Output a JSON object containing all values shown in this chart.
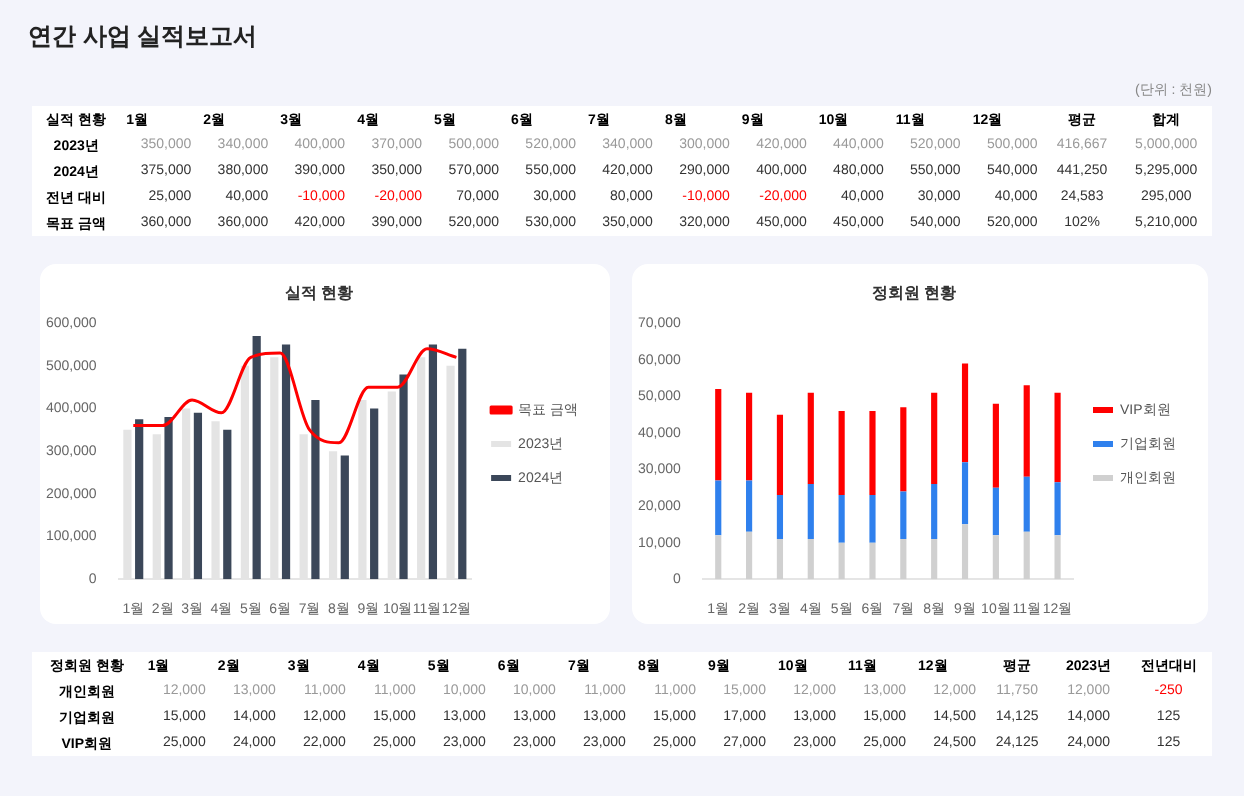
{
  "chart_data": [
    {
      "type": "heatmap",
      "title": "연간 사업 실적보고서",
      "ylabel": "실적 현황",
      "annotations": [
        "(단위 : 천원)"
      ],
      "categories": [
        "1월",
        "2월",
        "3월",
        "4월",
        "5월",
        "6월",
        "7월",
        "8월",
        "9월",
        "10월",
        "11월",
        "12월",
        "평균",
        "합계"
      ],
      "y_categories": [
        "2023년",
        "2024년",
        "전년 대비",
        "목표 금액"
      ],
      "cells": [
        [
          350000,
          340000,
          400000,
          370000,
          500000,
          520000,
          340000,
          300000,
          420000,
          440000,
          520000,
          500000,
          416667,
          5000000
        ],
        [
          375000,
          380000,
          390000,
          350000,
          570000,
          550000,
          420000,
          290000,
          400000,
          480000,
          550000,
          540000,
          441250,
          5295000
        ],
        [
          25000,
          40000,
          -10000,
          -20000,
          70000,
          30000,
          80000,
          -10000,
          -20000,
          40000,
          30000,
          40000,
          24583,
          295000
        ],
        [
          360000,
          360000,
          420000,
          390000,
          520000,
          530000,
          350000,
          320000,
          450000,
          450000,
          540000,
          520000,
          102,
          5210000
        ]
      ],
      "cell_labels": [
        [
          "350,000",
          "340,000",
          "400,000",
          "370,000",
          "500,000",
          "520,000",
          "340,000",
          "300,000",
          "420,000",
          "440,000",
          "520,000",
          "500,000",
          "416,667",
          "5,000,000"
        ],
        [
          "375,000",
          "380,000",
          "390,000",
          "350,000",
          "570,000",
          "550,000",
          "420,000",
          "290,000",
          "400,000",
          "480,000",
          "550,000",
          "540,000",
          "441,250",
          "5,295,000"
        ],
        [
          "25,000",
          "40,000",
          "-10,000",
          "-20,000",
          "70,000",
          "30,000",
          "80,000",
          "-10,000",
          "-20,000",
          "40,000",
          "30,000",
          "40,000",
          "24,583",
          "295,000"
        ],
        [
          "360,000",
          "360,000",
          "420,000",
          "390,000",
          "520,000",
          "530,000",
          "350,000",
          "320,000",
          "450,000",
          "450,000",
          "540,000",
          "520,000",
          "102%",
          "5,210,000"
        ]
      ]
    },
    {
      "type": "bar",
      "title": "실적 현황",
      "legend": "right",
      "categories": [
        "1월",
        "2월",
        "3월",
        "4월",
        "5월",
        "6월",
        "7월",
        "8월",
        "9월",
        "10월",
        "11월",
        "12월"
      ],
      "ylim": [
        0,
        600000
      ],
      "yticks": [
        0,
        {
          "value": 100000,
          "label": "100,000"
        },
        {
          "value": 200000,
          "label": "200,000"
        },
        {
          "value": 300000,
          "label": "300,000"
        },
        {
          "value": 400000,
          "label": "400,000"
        },
        {
          "value": 500000,
          "label": "500,000"
        },
        {
          "value": 600000,
          "label": "600,000"
        }
      ],
      "series": [
        {
          "name": "2023년",
          "color": "#e4e4e4",
          "values": [
            350000,
            340000,
            400000,
            370000,
            500000,
            520000,
            340000,
            300000,
            420000,
            440000,
            520000,
            500000
          ]
        },
        {
          "name": "2024년",
          "color": "#3b4759",
          "values": [
            375000,
            380000,
            390000,
            350000,
            570000,
            550000,
            420000,
            290000,
            400000,
            480000,
            550000,
            540000
          ]
        },
        {
          "name": "목표 금액",
          "type": "line",
          "color": "#ff0000",
          "values": [
            360000,
            360000,
            420000,
            390000,
            520000,
            530000,
            350000,
            320000,
            450000,
            450000,
            540000,
            520000
          ]
        }
      ]
    },
    {
      "type": "bar",
      "title": "정회원 현황",
      "legend": "right",
      "stacked": true,
      "categories": [
        "1월",
        "2월",
        "3월",
        "4월",
        "5월",
        "6월",
        "7월",
        "8월",
        "9월",
        "10월",
        "11월",
        "12월"
      ],
      "ylim": [
        0,
        70000
      ],
      "yticks": [
        0,
        {
          "value": 10000,
          "label": "10,000"
        },
        {
          "value": 20000,
          "label": "20,000"
        },
        {
          "value": 30000,
          "label": "30,000"
        },
        {
          "value": 40000,
          "label": "40,000"
        },
        {
          "value": 50000,
          "label": "50,000"
        },
        {
          "value": 60000,
          "label": "60,000"
        },
        {
          "value": 70000,
          "label": "70,000"
        }
      ],
      "series": [
        {
          "name": "개인회원",
          "color": "#d0d0d0",
          "values": [
            12000,
            13000,
            11000,
            11000,
            10000,
            10000,
            11000,
            11000,
            15000,
            12000,
            13000,
            12000
          ]
        },
        {
          "name": "기업회원",
          "color": "#2f80ed",
          "values": [
            15000,
            14000,
            12000,
            15000,
            13000,
            13000,
            13000,
            15000,
            17000,
            13000,
            15000,
            14500
          ]
        },
        {
          "name": "VIP회원",
          "color": "#ff0000",
          "values": [
            25000,
            24000,
            22000,
            25000,
            23000,
            23000,
            23000,
            25000,
            27000,
            23000,
            25000,
            24500
          ]
        }
      ]
    },
    {
      "type": "heatmap",
      "ylabel": "정회원 현황",
      "categories": [
        "1월",
        "2월",
        "3월",
        "4월",
        "5월",
        "6월",
        "7월",
        "8월",
        "9월",
        "10월",
        "11월",
        "12월",
        "평균",
        "2023년",
        "전년대비"
      ],
      "y_categories": [
        "개인회원",
        "기업회원",
        "VIP회원"
      ],
      "cells": [
        [
          12000,
          13000,
          11000,
          11000,
          10000,
          10000,
          11000,
          11000,
          15000,
          12000,
          13000,
          12000,
          11750,
          12000,
          -250
        ],
        [
          15000,
          14000,
          12000,
          15000,
          13000,
          13000,
          13000,
          15000,
          17000,
          13000,
          15000,
          14500,
          14125,
          14000,
          125
        ],
        [
          25000,
          24000,
          22000,
          25000,
          23000,
          23000,
          23000,
          25000,
          27000,
          23000,
          25000,
          24500,
          24125,
          24000,
          125
        ]
      ],
      "cell_labels": [
        [
          "12,000",
          "13,000",
          "11,000",
          "11,000",
          "10,000",
          "10,000",
          "11,000",
          "11,000",
          "15,000",
          "12,000",
          "13,000",
          "12,000",
          "11,750",
          "12,000",
          "-250"
        ],
        [
          "15,000",
          "14,000",
          "12,000",
          "15,000",
          "13,000",
          "13,000",
          "13,000",
          "15,000",
          "17,000",
          "13,000",
          "15,000",
          "14,500",
          "14,125",
          "14,000",
          "125"
        ],
        [
          "25,000",
          "24,000",
          "22,000",
          "25,000",
          "23,000",
          "23,000",
          "23,000",
          "25,000",
          "27,000",
          "23,000",
          "25,000",
          "24,500",
          "24,125",
          "24,000",
          "125"
        ]
      ]
    }
  ]
}
